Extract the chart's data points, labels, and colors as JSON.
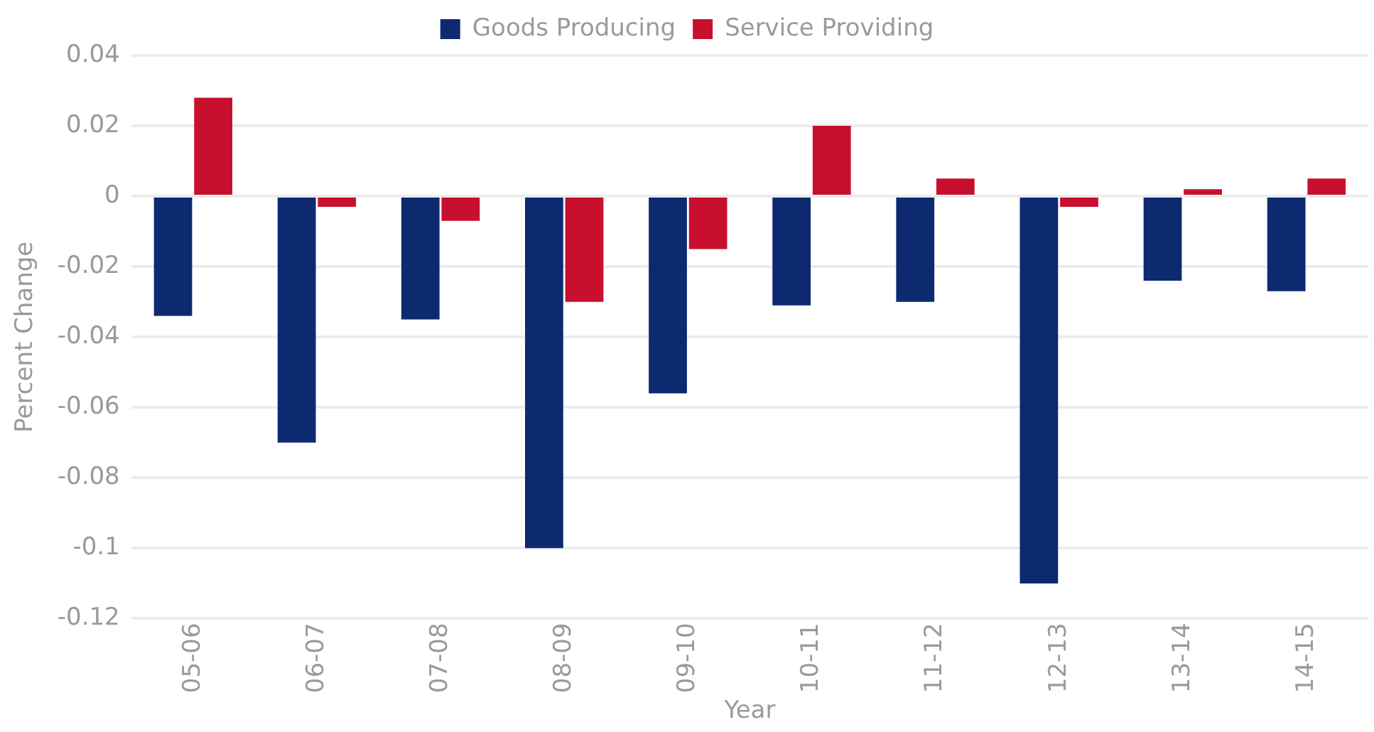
{
  "chart_data": {
    "type": "bar",
    "xlabel": "Year",
    "ylabel": "Percent Change",
    "categories": [
      "05-06",
      "06-07",
      "07-08",
      "08-09",
      "09-10",
      "10-11",
      "11-12",
      "12-13",
      "13-14",
      "14-15"
    ],
    "series": [
      {
        "name": "Goods Producing",
        "color": "#0d2a70",
        "values": [
          -0.034,
          -0.07,
          -0.035,
          -0.1,
          -0.056,
          -0.031,
          -0.03,
          -0.11,
          -0.024,
          -0.027
        ]
      },
      {
        "name": "Service Providing",
        "color": "#c8102e",
        "values": [
          0.028,
          -0.003,
          -0.007,
          -0.03,
          -0.015,
          0.02,
          0.005,
          -0.003,
          0.002,
          0.005
        ]
      }
    ],
    "ylim": [
      -0.12,
      0.04
    ],
    "yticks": [
      -0.12,
      -0.1,
      -0.08,
      -0.06,
      -0.04,
      -0.02,
      0,
      0.02,
      0.04
    ],
    "grid": "y",
    "legend": "top"
  }
}
